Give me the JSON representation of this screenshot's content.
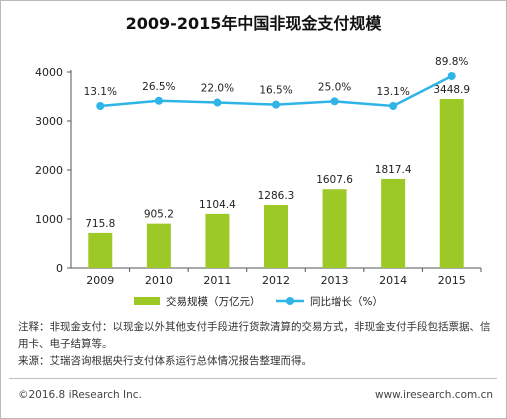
{
  "chart_data": {
    "type": "bar+line",
    "title": "2009-2015年中国非现金支付规模",
    "categories": [
      "2009",
      "2010",
      "2011",
      "2012",
      "2013",
      "2014",
      "2015"
    ],
    "series": [
      {
        "name": "交易规模（万亿元）",
        "type": "bar",
        "axis": "left",
        "values": [
          715.8,
          905.2,
          1104.4,
          1286.3,
          1607.6,
          1817.4,
          3448.9
        ],
        "labels": [
          "715.8",
          "905.2",
          "1104.4",
          "1286.3",
          "1607.6",
          "1817.4",
          "3448.9"
        ]
      },
      {
        "name": "同比增长（%）",
        "type": "line",
        "axis": "right",
        "values": [
          13.1,
          26.5,
          22.0,
          16.5,
          25.0,
          13.1,
          89.8
        ],
        "labels": [
          "13.1%",
          "26.5%",
          "22.0%",
          "16.5%",
          "25.0%",
          "13.1%",
          "89.8%"
        ]
      }
    ],
    "yticks": [
      "0",
      "1000",
      "2000",
      "3000",
      "4000"
    ],
    "ylim": [
      0,
      4000
    ],
    "grid": false,
    "legend": "bottom",
    "colors": {
      "bar": "#9dc926",
      "line": "#2fb4e8",
      "axis": "#555555"
    }
  },
  "footer": {
    "note": "注释：非现金支付：以现金以外其他支付手段进行货款清算的交易方式，非现金支付手段包括票据、信用卡、电子结算等。",
    "source": "来源：艾瑞咨询根据央行支付体系运行总体情况报告整理而得。",
    "copyright": "©2016.8 iResearch Inc.",
    "website": "www.iresearch.com.cn"
  }
}
